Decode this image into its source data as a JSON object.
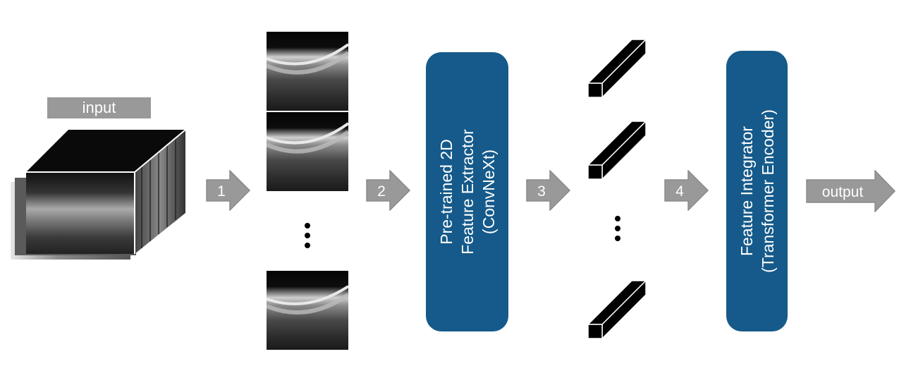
{
  "input_label": "input",
  "steps": [
    "1",
    "2",
    "3",
    "4"
  ],
  "output_label": "output",
  "feature_extractor": {
    "line1": "Pre-trained 2D",
    "line2": "Feature Extractor",
    "line3": "(ConvNeXt)"
  },
  "feature_integrator": {
    "line1": "Feature Integrator",
    "line2": "(Transformer Encoder)"
  },
  "colors": {
    "block_fill": "#155a8a",
    "arrow_fill": "#999999",
    "arrow_stroke": "#8a8a8a"
  }
}
